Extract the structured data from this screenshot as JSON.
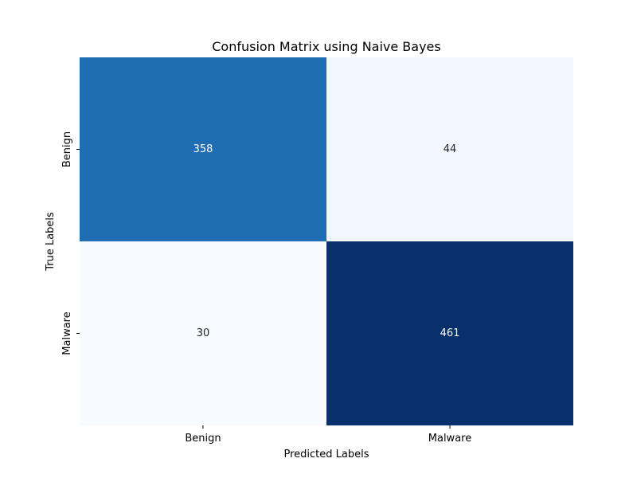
{
  "chart_data": {
    "type": "heatmap",
    "title": "Confusion Matrix using Naive Bayes",
    "xlabel": "Predicted Labels",
    "ylabel": "True Labels",
    "x_categories": [
      "Benign",
      "Malware"
    ],
    "y_categories": [
      "Benign",
      "Malware"
    ],
    "values": [
      [
        358,
        44
      ],
      [
        30,
        461
      ]
    ],
    "colormap": "Blues",
    "colorbar": false,
    "annotations": true,
    "grid": false
  }
}
